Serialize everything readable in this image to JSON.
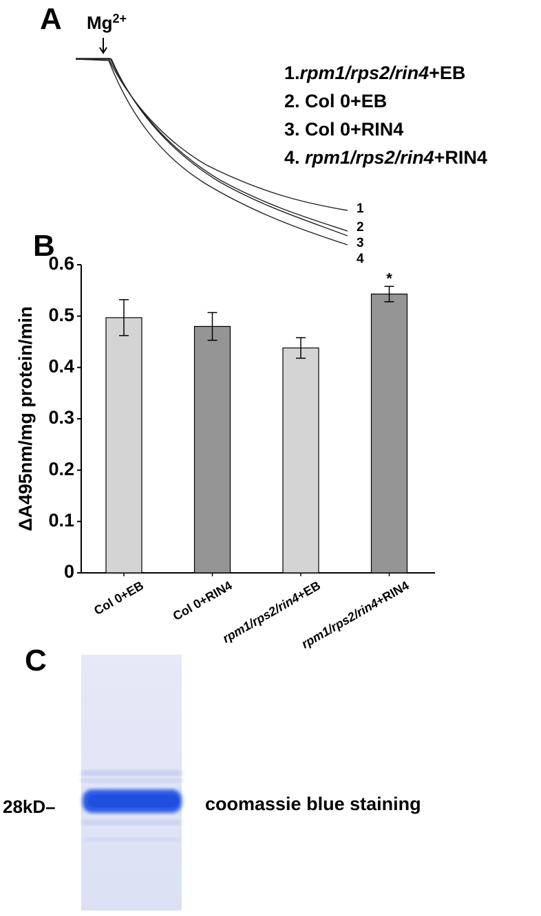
{
  "figure": {
    "panel_a": {
      "label": "A",
      "marker": "Mg",
      "marker_superscript": "2+",
      "legend": [
        [
          {
            "text": "1."
          },
          {
            "text": "rpm1/rps2/rin4",
            "italic": true
          },
          {
            "text": "+EB"
          }
        ],
        [
          {
            "text": "2. Col 0+EB"
          }
        ],
        [
          {
            "text": "3. Col 0+RIN4"
          }
        ],
        [
          {
            "text": "4. "
          },
          {
            "text": "rpm1/rps2/rin4",
            "italic": true
          },
          {
            "text": "+RIN4"
          }
        ]
      ],
      "trace_labels": [
        "1",
        "2",
        "3",
        "4"
      ]
    },
    "panel_c": {
      "label": "C",
      "marker_label": "28kD–",
      "caption": "coomassie blue staining"
    }
  },
  "chart_data": {
    "type": "bar",
    "panel_label": "B",
    "y_label": "ΔA495nm/mg protein/min",
    "categories": [
      "Col 0+EB",
      "Col 0+RIN4",
      "rpm1/rps2/rin4+EB",
      "rpm1/rps2/rin4+RIN4"
    ],
    "italic_genotype": [
      false,
      false,
      true,
      true
    ],
    "values": [
      0.497,
      0.48,
      0.438,
      0.543
    ],
    "errors": [
      0.035,
      0.027,
      0.02,
      0.015
    ],
    "colors": [
      "#d4d4d4",
      "#959595",
      "#d4d4d4",
      "#959595"
    ],
    "annotations": [
      null,
      null,
      null,
      "*"
    ],
    "ylim": [
      0,
      0.6
    ],
    "yticks": [
      0,
      0.1,
      0.2,
      0.3,
      0.4,
      0.5,
      0.6
    ],
    "grid": false
  }
}
